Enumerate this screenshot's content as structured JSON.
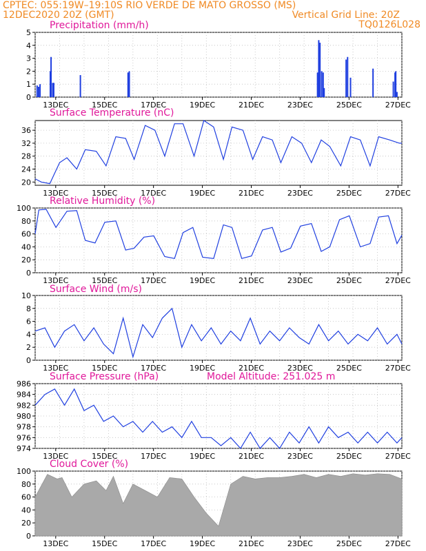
{
  "header": {
    "line1_left": "CPTEC:   055:19W–19:10S   RIO VERDE DE MATO GROSSO (MS)",
    "line2_left": "12DEC2020 20Z (GMT)",
    "line2_right": "Vertical Grid Line: 20Z",
    "line3_right": "TQ0126L028"
  },
  "colors": {
    "header": "#f08a24",
    "title": "#e0189a",
    "series": "#1f3fe0",
    "cloud": "#a9a9a9",
    "grid": "#bdbdbd"
  },
  "x_axis": {
    "start": "12DEC2020 20Z",
    "end": "27DEC2020 00Z",
    "tick_labels": [
      "13DEC",
      "15DEC",
      "17DEC",
      "19DEC",
      "21DEC",
      "23DEC",
      "25DEC",
      "27DEC"
    ]
  },
  "chart_data": [
    {
      "type": "bar",
      "title": "Precipitation (mm/h)",
      "ylim": [
        0,
        5
      ],
      "yticks": [
        "0",
        "1",
        "2",
        "3",
        "4",
        "5"
      ],
      "bars": [
        [
          0.08,
          0.9
        ],
        [
          0.14,
          0.8
        ],
        [
          0.2,
          1.0
        ],
        [
          0.62,
          2.0
        ],
        [
          0.65,
          3.1
        ],
        [
          0.72,
          1.1
        ],
        [
          0.76,
          1.1
        ],
        [
          1.85,
          1.7
        ],
        [
          3.8,
          1.9
        ],
        [
          3.85,
          2.0
        ],
        [
          11.55,
          1.9
        ],
        [
          11.6,
          4.4
        ],
        [
          11.65,
          4.2
        ],
        [
          11.72,
          2.0
        ],
        [
          11.78,
          1.9
        ],
        [
          11.82,
          0.7
        ],
        [
          12.72,
          2.9
        ],
        [
          12.78,
          3.1
        ],
        [
          12.9,
          1.5
        ],
        [
          13.82,
          2.2
        ],
        [
          14.65,
          1.2
        ],
        [
          14.72,
          1.9
        ],
        [
          14.75,
          2.0
        ],
        [
          14.8,
          0.4
        ]
      ]
    },
    {
      "type": "line",
      "title": "Surface Temperature (nC)",
      "ylim": [
        19,
        39
      ],
      "yticks": [
        "20",
        "24",
        "28",
        "32",
        "36"
      ],
      "x": [
        0.0,
        0.25,
        0.6,
        1.0,
        1.3,
        1.7,
        2.05,
        2.5,
        2.9,
        3.3,
        3.7,
        4.05,
        4.5,
        4.9,
        5.3,
        5.7,
        6.05,
        6.5,
        6.9,
        7.3,
        7.7,
        8.05,
        8.5,
        8.9,
        9.3,
        9.7,
        10.05,
        10.5,
        10.9,
        11.3,
        11.7,
        12.05,
        12.5,
        12.9,
        13.3,
        13.7,
        14.05,
        14.5,
        14.9,
        15.0
      ],
      "values": [
        21,
        20,
        19.5,
        26,
        27.5,
        24,
        30,
        29.5,
        25,
        34,
        33.5,
        27,
        37.5,
        36,
        28,
        38,
        38,
        28,
        39,
        37,
        27,
        37,
        36,
        27,
        34,
        33,
        26,
        34,
        32,
        26,
        33,
        31,
        25,
        34,
        33,
        25,
        34,
        33,
        32,
        32
      ]
    },
    {
      "type": "line",
      "title": "Relative Humidity (%)",
      "ylim": [
        0,
        100
      ],
      "yticks": [
        "0",
        "20",
        "40",
        "60",
        "80",
        "100"
      ],
      "x": [
        0.0,
        0.15,
        0.45,
        0.85,
        1.3,
        1.7,
        2.05,
        2.45,
        2.85,
        3.3,
        3.7,
        4.05,
        4.45,
        4.85,
        5.3,
        5.7,
        6.05,
        6.45,
        6.85,
        7.3,
        7.7,
        8.05,
        8.45,
        8.85,
        9.3,
        9.7,
        10.05,
        10.45,
        10.85,
        11.3,
        11.7,
        12.05,
        12.45,
        12.85,
        13.3,
        13.7,
        14.05,
        14.45,
        14.8,
        15.0
      ],
      "values": [
        60,
        97,
        98,
        70,
        95,
        96,
        50,
        46,
        78,
        80,
        35,
        38,
        55,
        57,
        25,
        22,
        62,
        70,
        24,
        22,
        74,
        70,
        22,
        26,
        66,
        70,
        32,
        38,
        72,
        76,
        33,
        40,
        82,
        88,
        40,
        45,
        86,
        88,
        45,
        58
      ]
    },
    {
      "type": "line",
      "title": "Surface Wind (m/s)",
      "ylim": [
        0,
        10
      ],
      "yticks": [
        "0",
        "2",
        "4",
        "6",
        "8",
        "10"
      ],
      "x": [
        0.0,
        0.4,
        0.8,
        1.2,
        1.6,
        2.0,
        2.4,
        2.8,
        3.2,
        3.6,
        4.0,
        4.4,
        4.8,
        5.2,
        5.6,
        6.0,
        6.4,
        6.8,
        7.2,
        7.6,
        8.0,
        8.4,
        8.8,
        9.2,
        9.6,
        10.0,
        10.4,
        10.8,
        11.2,
        11.6,
        12.0,
        12.4,
        12.8,
        13.2,
        13.6,
        14.0,
        14.4,
        14.8,
        15.0
      ],
      "values": [
        4.5,
        5.0,
        2.0,
        4.5,
        5.5,
        3.0,
        5.0,
        2.5,
        1.0,
        6.5,
        0.5,
        5.5,
        3.5,
        6.5,
        8.0,
        2.0,
        5.5,
        3.0,
        5.0,
        2.5,
        4.5,
        3.0,
        6.5,
        2.5,
        4.5,
        3.0,
        5.0,
        3.5,
        2.5,
        5.5,
        3.0,
        4.5,
        2.5,
        4.0,
        3.0,
        5.0,
        2.5,
        4.0,
        2.5
      ]
    },
    {
      "type": "line",
      "title": "Surface Pressure (hPa)",
      "annotation": "Model Altitude: 251.025 m",
      "ylim": [
        974,
        986
      ],
      "yticks": [
        "974",
        "976",
        "978",
        "980",
        "982",
        "984",
        "986"
      ],
      "x": [
        0.0,
        0.4,
        0.8,
        1.2,
        1.6,
        2.0,
        2.4,
        2.8,
        3.2,
        3.6,
        4.0,
        4.4,
        4.8,
        5.2,
        5.6,
        6.0,
        6.4,
        6.8,
        7.2,
        7.6,
        8.0,
        8.4,
        8.8,
        9.2,
        9.6,
        10.0,
        10.4,
        10.8,
        11.2,
        11.6,
        12.0,
        12.4,
        12.8,
        13.2,
        13.6,
        14.0,
        14.4,
        14.8,
        15.0
      ],
      "values": [
        982,
        984,
        985,
        982,
        985,
        981,
        982,
        979,
        980,
        978,
        979,
        977,
        979,
        977,
        978,
        976,
        979,
        976,
        976,
        974.5,
        976,
        974,
        977,
        974,
        976,
        974,
        977,
        975,
        978,
        975,
        978,
        976,
        977,
        975,
        977,
        975,
        977,
        975,
        976
      ]
    },
    {
      "type": "area",
      "title": "Cloud Cover (%)",
      "ylim": [
        0,
        100
      ],
      "yticks": [
        "0",
        "20",
        "40",
        "60",
        "80",
        "100"
      ],
      "x": [
        0.0,
        0.5,
        0.9,
        1.1,
        1.5,
        2.0,
        2.5,
        2.9,
        3.2,
        3.6,
        4.0,
        4.5,
        5.0,
        5.5,
        6.0,
        6.5,
        7.0,
        7.5,
        8.0,
        8.5,
        9.0,
        9.5,
        10.0,
        10.5,
        11.0,
        11.5,
        12.0,
        12.5,
        13.0,
        13.5,
        14.0,
        14.5,
        15.0
      ],
      "values": [
        60,
        95,
        88,
        90,
        60,
        80,
        85,
        70,
        92,
        50,
        80,
        70,
        60,
        90,
        88,
        60,
        35,
        15,
        80,
        92,
        88,
        90,
        90,
        92,
        95,
        90,
        95,
        92,
        96,
        94,
        96,
        95,
        88
      ]
    }
  ]
}
